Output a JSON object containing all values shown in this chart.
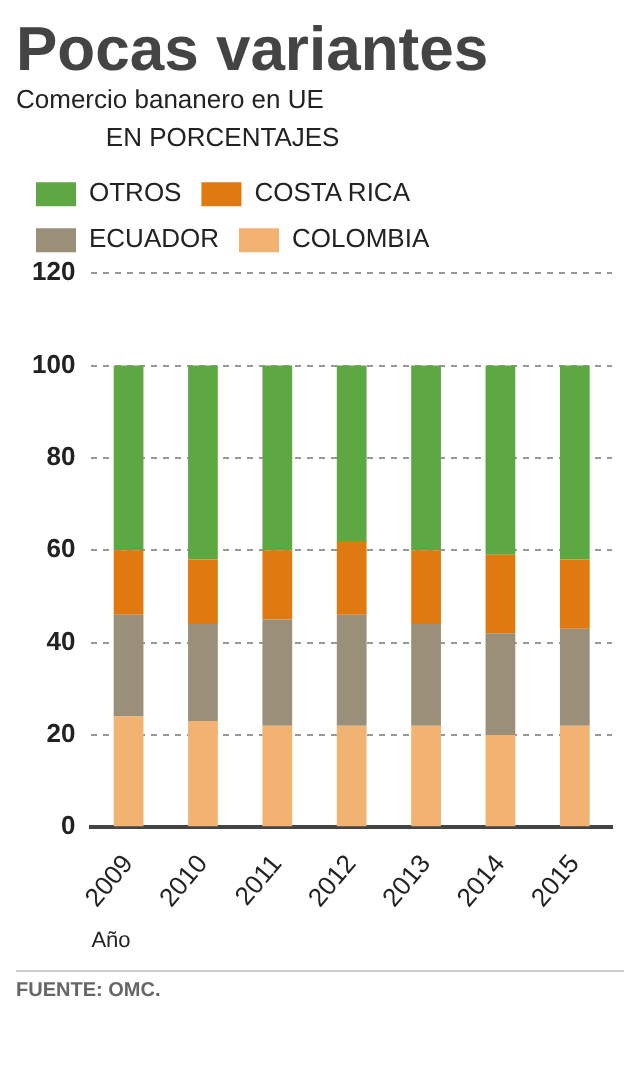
{
  "chart_data": {
    "type": "bar",
    "title": "Pocas variantes",
    "subtitle": "Comercio bananero en UE",
    "legend_title": "EN PORCENTAJES",
    "xlabel": "Año",
    "categories": [
      "2009",
      "2010",
      "2011",
      "2012",
      "2013",
      "2014",
      "2015"
    ],
    "stacked": true,
    "series": [
      {
        "name": "COLOMBIA",
        "color": "#f2b272",
        "values": [
          24,
          23,
          22,
          22,
          22,
          20,
          22
        ]
      },
      {
        "name": "ECUADOR",
        "color": "#9a8f78",
        "values": [
          22,
          21,
          23,
          24,
          22,
          22,
          21
        ]
      },
      {
        "name": "COSTA RICA",
        "color": "#e07a10",
        "values": [
          14,
          14,
          15,
          16,
          16,
          17,
          15
        ]
      },
      {
        "name": "OTROS",
        "color": "#5ea843",
        "values": [
          40,
          42,
          40,
          38,
          40,
          41,
          42
        ]
      }
    ],
    "ylim": [
      0,
      120
    ],
    "yticks": [
      0,
      20,
      40,
      60,
      80,
      100,
      120
    ],
    "grid": "y",
    "legend": "top",
    "annotations": [
      "FUENTE: OMC."
    ]
  }
}
